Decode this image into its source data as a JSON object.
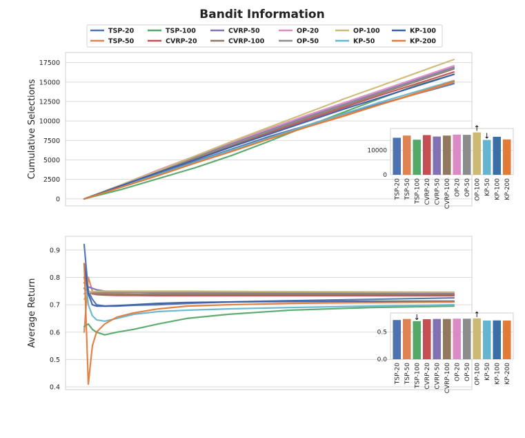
{
  "chart_data": [
    {
      "panel": "top",
      "type": "line",
      "title": "Bandit Information",
      "xlabel": "",
      "ylabel": "Cumulative Selections",
      "ylim": [
        -900,
        18800
      ],
      "yticks": [
        0,
        2500,
        5000,
        7500,
        10000,
        12500,
        15000,
        17500
      ],
      "ytick_labels": [
        "0",
        "2500",
        "5000",
        "7500",
        "10000",
        "12500",
        "15000",
        "17500"
      ],
      "x": [
        0,
        10,
        20,
        30,
        40,
        50,
        60,
        70,
        80,
        90,
        100
      ],
      "grid": true,
      "legend": "top-center",
      "series": [
        {
          "name": "TSP-20",
          "color": "#4c72b0",
          "values": [
            0,
            1600,
            3200,
            4800,
            6400,
            8000,
            9400,
            10900,
            12200,
            13500,
            14800
          ]
        },
        {
          "name": "TSP-50",
          "color": "#dd8452",
          "values": [
            0,
            1500,
            3000,
            4600,
            6200,
            7700,
            9200,
            10700,
            12100,
            13500,
            15000
          ]
        },
        {
          "name": "TSP-100",
          "color": "#55a868",
          "values": [
            0,
            1200,
            2600,
            4000,
            5600,
            7400,
            9300,
            11100,
            12900,
            14600,
            16000
          ]
        },
        {
          "name": "CVRP-20",
          "color": "#c44e52",
          "values": [
            0,
            1700,
            3400,
            5100,
            6800,
            8500,
            10100,
            11700,
            13300,
            14800,
            16300
          ]
        },
        {
          "name": "CVRP-50",
          "color": "#8172b3",
          "values": [
            0,
            1800,
            3600,
            5400,
            7100,
            8800,
            10500,
            12100,
            13700,
            15300,
            16900
          ]
        },
        {
          "name": "CVRP-100",
          "color": "#937860",
          "values": [
            0,
            1700,
            3500,
            5200,
            6900,
            8600,
            10300,
            11900,
            13500,
            15100,
            16700
          ]
        },
        {
          "name": "OP-20",
          "color": "#da8bc3",
          "values": [
            0,
            1800,
            3700,
            5500,
            7300,
            9000,
            10700,
            12300,
            13900,
            15500,
            17100
          ]
        },
        {
          "name": "OP-50",
          "color": "#8c8c8c",
          "values": [
            0,
            1700,
            3500,
            5300,
            7000,
            8700,
            10400,
            12000,
            13600,
            15200,
            16800
          ]
        },
        {
          "name": "OP-100",
          "color": "#ccb974",
          "values": [
            0,
            1800,
            3600,
            5500,
            7400,
            9200,
            11000,
            12800,
            14500,
            16200,
            17900
          ]
        },
        {
          "name": "KP-50",
          "color": "#64b5cd",
          "values": [
            0,
            1600,
            3100,
            4700,
            6300,
            7800,
            9400,
            10900,
            12400,
            13800,
            15200
          ]
        },
        {
          "name": "KP-100",
          "color": "#3b5ea8",
          "values": [
            0,
            1700,
            3400,
            5000,
            6700,
            8300,
            9900,
            11500,
            13000,
            14500,
            16000
          ]
        },
        {
          "name": "KP-200",
          "color": "#e07b39",
          "values": [
            0,
            1500,
            3000,
            4600,
            6100,
            7700,
            9200,
            10600,
            12100,
            13600,
            15100
          ]
        }
      ],
      "inset": {
        "type": "bar",
        "categories": [
          "TSP-20",
          "TSP-50",
          "TSP-100",
          "CVRP-20",
          "CVRP-50",
          "CVRP-100",
          "OP-20",
          "OP-50",
          "OP-100",
          "KP-50",
          "KP-100",
          "KP-200"
        ],
        "values": [
          15200,
          16100,
          14400,
          16300,
          15700,
          16100,
          16500,
          16400,
          17400,
          14300,
          15600,
          14500
        ],
        "colors": [
          "#4c72b0",
          "#dd8452",
          "#55a868",
          "#c44e52",
          "#8172b3",
          "#937860",
          "#da8bc3",
          "#8c8c8c",
          "#ccb974",
          "#64b5cd",
          "#3b6ea5",
          "#e07b39"
        ],
        "ylim": [
          0,
          19000
        ],
        "yticks": [
          0,
          10000
        ],
        "ytick_labels": [
          "0",
          "10000"
        ],
        "markers": [
          {
            "category": "OP-100",
            "symbol": "↑"
          },
          {
            "category": "KP-50",
            "symbol": "↓"
          }
        ]
      }
    },
    {
      "panel": "bottom",
      "type": "line",
      "title": "",
      "xlabel": "",
      "ylabel": "Average Return",
      "ylim": [
        0.39,
        0.95
      ],
      "yticks": [
        0.4,
        0.5,
        0.6,
        0.7,
        0.8,
        0.9
      ],
      "ytick_labels": [
        "0.4",
        "0.5",
        "0.6",
        "0.7",
        "0.8",
        "0.9"
      ],
      "x": [
        0,
        1,
        2,
        3,
        5,
        8,
        12,
        18,
        25,
        35,
        50,
        70,
        90
      ],
      "grid": true,
      "series": [
        {
          "name": "TSP-20",
          "color": "#4c72b0",
          "values": [
            0.92,
            0.75,
            0.72,
            0.7,
            0.695,
            0.695,
            0.698,
            0.7,
            0.705,
            0.71,
            0.715,
            0.72,
            0.725
          ]
        },
        {
          "name": "TSP-50",
          "color": "#dd8452",
          "values": [
            0.6,
            0.8,
            0.75,
            0.74,
            0.74,
            0.74,
            0.738,
            0.737,
            0.737,
            0.737,
            0.737,
            0.737,
            0.737
          ]
        },
        {
          "name": "TSP-100",
          "color": "#55a868",
          "values": [
            0.62,
            0.63,
            0.61,
            0.6,
            0.59,
            0.6,
            0.61,
            0.63,
            0.65,
            0.665,
            0.68,
            0.69,
            0.695
          ]
        },
        {
          "name": "CVRP-20",
          "color": "#c44e52",
          "values": [
            0.8,
            0.75,
            0.74,
            0.737,
            0.735,
            0.734,
            0.734,
            0.733,
            0.733,
            0.733,
            0.733,
            0.733,
            0.733
          ]
        },
        {
          "name": "CVRP-50",
          "color": "#8172b3",
          "values": [
            0.78,
            0.765,
            0.76,
            0.755,
            0.75,
            0.747,
            0.745,
            0.743,
            0.742,
            0.741,
            0.741,
            0.74,
            0.74
          ]
        },
        {
          "name": "CVRP-100",
          "color": "#937860",
          "values": [
            0.76,
            0.745,
            0.742,
            0.74,
            0.739,
            0.738,
            0.738,
            0.738,
            0.738,
            0.738,
            0.738,
            0.738,
            0.738
          ]
        },
        {
          "name": "OP-20",
          "color": "#da8bc3",
          "values": [
            0.74,
            0.745,
            0.745,
            0.745,
            0.745,
            0.745,
            0.745,
            0.745,
            0.745,
            0.745,
            0.745,
            0.745,
            0.745
          ]
        },
        {
          "name": "OP-50",
          "color": "#8c8c8c",
          "values": [
            0.76,
            0.748,
            0.746,
            0.745,
            0.745,
            0.745,
            0.745,
            0.745,
            0.745,
            0.745,
            0.745,
            0.745,
            0.745
          ]
        },
        {
          "name": "OP-100",
          "color": "#ccb974",
          "values": [
            0.72,
            0.745,
            0.748,
            0.749,
            0.75,
            0.75,
            0.75,
            0.75,
            0.75,
            0.749,
            0.748,
            0.747,
            0.746
          ]
        },
        {
          "name": "KP-50",
          "color": "#64b5cd",
          "values": [
            0.85,
            0.7,
            0.66,
            0.645,
            0.64,
            0.65,
            0.665,
            0.675,
            0.68,
            0.685,
            0.69,
            0.695,
            0.7
          ]
        },
        {
          "name": "KP-100",
          "color": "#3b5ea8",
          "values": [
            0.85,
            0.74,
            0.7,
            0.695,
            0.695,
            0.697,
            0.7,
            0.705,
            0.708,
            0.71,
            0.712,
            0.713,
            0.713
          ]
        },
        {
          "name": "KP-200",
          "color": "#e07b39",
          "values": [
            0.85,
            0.41,
            0.55,
            0.6,
            0.63,
            0.655,
            0.67,
            0.685,
            0.695,
            0.7,
            0.705,
            0.708,
            0.71
          ]
        }
      ],
      "inset": {
        "type": "bar",
        "categories": [
          "TSP-20",
          "TSP-50",
          "TSP-100",
          "CVRP-20",
          "CVRP-50",
          "CVRP-100",
          "OP-20",
          "OP-50",
          "OP-100",
          "KP-50",
          "KP-100",
          "KP-200"
        ],
        "values": [
          0.72,
          0.74,
          0.7,
          0.735,
          0.74,
          0.74,
          0.745,
          0.745,
          0.75,
          0.71,
          0.713,
          0.71
        ],
        "colors": [
          "#4c72b0",
          "#dd8452",
          "#55a868",
          "#c44e52",
          "#8172b3",
          "#937860",
          "#da8bc3",
          "#8c8c8c",
          "#ccb974",
          "#64b5cd",
          "#3b6ea5",
          "#e07b39"
        ],
        "ylim": [
          0,
          0.85
        ],
        "yticks": [
          0.0,
          0.5
        ],
        "ytick_labels": [
          "0.0",
          "0.5"
        ],
        "markers": [
          {
            "category": "TSP-100",
            "symbol": "↓"
          },
          {
            "category": "OP-100",
            "symbol": "↑"
          }
        ]
      }
    }
  ]
}
